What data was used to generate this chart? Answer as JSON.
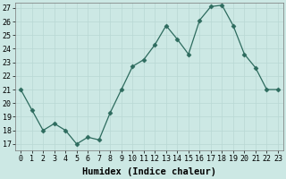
{
  "x": [
    0,
    1,
    2,
    3,
    4,
    5,
    6,
    7,
    8,
    9,
    10,
    11,
    12,
    13,
    14,
    15,
    16,
    17,
    18,
    19,
    20,
    21,
    22,
    23
  ],
  "y": [
    21,
    19.5,
    18,
    18.5,
    18,
    17,
    17.5,
    17.3,
    19.3,
    21,
    22.7,
    23.2,
    24.3,
    25.7,
    24.7,
    23.6,
    26.1,
    27.1,
    27.2,
    25.7,
    23.6,
    22.6,
    21,
    21
  ],
  "line_color": "#2d6b5e",
  "marker": "D",
  "marker_size": 2.5,
  "bg_color": "#cce8e4",
  "grid_color": "#b8d8d4",
  "xlabel": "Humidex (Indice chaleur)",
  "ylim_min": 16.5,
  "ylim_max": 27.4,
  "xlim_min": -0.5,
  "xlim_max": 23.5,
  "yticks": [
    17,
    18,
    19,
    20,
    21,
    22,
    23,
    24,
    25,
    26,
    27
  ],
  "xticks": [
    0,
    1,
    2,
    3,
    4,
    5,
    6,
    7,
    8,
    9,
    10,
    11,
    12,
    13,
    14,
    15,
    16,
    17,
    18,
    19,
    20,
    21,
    22,
    23
  ],
  "xtick_labels": [
    "0",
    "1",
    "2",
    "3",
    "4",
    "5",
    "6",
    "7",
    "8",
    "9",
    "10",
    "11",
    "12",
    "13",
    "14",
    "15",
    "16",
    "17",
    "18",
    "19",
    "20",
    "21",
    "22",
    "23"
  ],
  "ytick_labels": [
    "17",
    "18",
    "19",
    "20",
    "21",
    "22",
    "23",
    "24",
    "25",
    "26",
    "27"
  ],
  "tick_fontsize": 6,
  "xlabel_fontsize": 7.5
}
